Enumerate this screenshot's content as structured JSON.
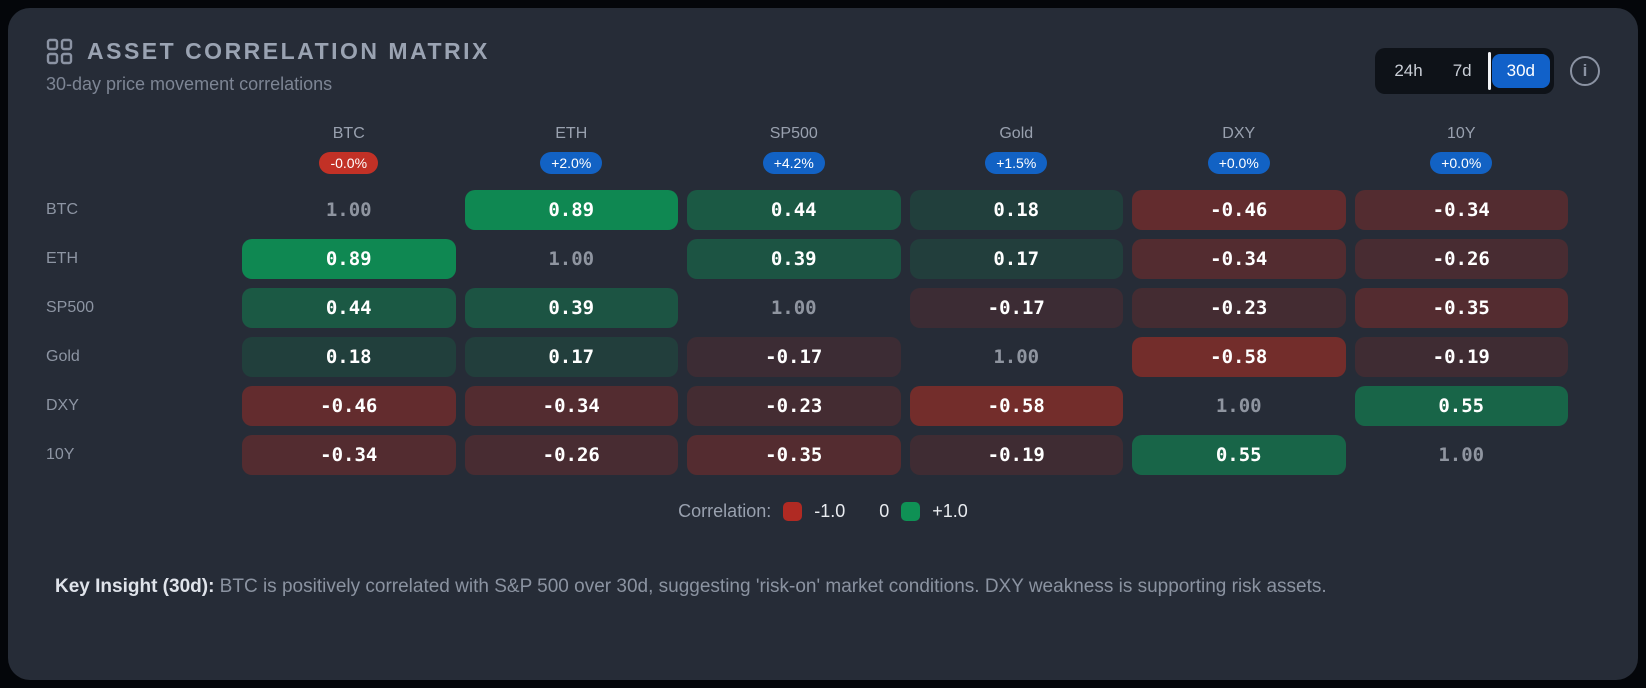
{
  "header": {
    "title": "ASSET CORRELATION MATRIX",
    "subtitle": "30-day price movement correlations",
    "range_options": [
      {
        "label": "24h",
        "active": false
      },
      {
        "label": "7d",
        "active": false
      },
      {
        "label": "30d",
        "active": true
      }
    ],
    "active_range_color": "#1161c9",
    "info_label": "i"
  },
  "chart_data": {
    "type": "heatmap",
    "title": "Asset Correlation Matrix",
    "timeframe": "30d",
    "assets": [
      "BTC",
      "ETH",
      "SP500",
      "Gold",
      "DXY",
      "10Y"
    ],
    "column_badges": [
      {
        "label": "-0.0%",
        "color": "#c23126"
      },
      {
        "label": "+2.0%",
        "color": "#1262c4"
      },
      {
        "label": "+4.2%",
        "color": "#1262c4"
      },
      {
        "label": "+1.5%",
        "color": "#1262c4"
      },
      {
        "label": "+0.0%",
        "color": "#1262c4"
      },
      {
        "label": "+0.0%",
        "color": "#1262c4"
      }
    ],
    "matrix": [
      [
        1.0,
        0.89,
        0.44,
        0.18,
        -0.46,
        -0.34
      ],
      [
        0.89,
        1.0,
        0.39,
        0.17,
        -0.34,
        -0.26
      ],
      [
        0.44,
        0.39,
        1.0,
        -0.17,
        -0.23,
        -0.35
      ],
      [
        0.18,
        0.17,
        -0.17,
        1.0,
        -0.58,
        -0.19
      ],
      [
        -0.46,
        -0.34,
        -0.23,
        -0.58,
        1.0,
        0.55
      ],
      [
        -0.34,
        -0.26,
        -0.35,
        -0.19,
        0.55,
        1.0
      ]
    ],
    "value_range": [
      -1,
      1
    ],
    "colors": {
      "negative": "#aa2d23",
      "positive": "#0c9355",
      "neutral_bg": "#262c37"
    },
    "legend_position": "bottom"
  },
  "legend": {
    "label": "Correlation:",
    "min_label": "-1.0",
    "zero_label": "0",
    "max_label": "+1.0",
    "min_color": "#b02a23",
    "max_color": "#0f9155"
  },
  "insight": {
    "label": "Key Insight (30d):",
    "text": " BTC is positively correlated with S&P 500 over 30d, suggesting 'risk-on' market conditions. DXY weakness is supporting risk assets."
  }
}
